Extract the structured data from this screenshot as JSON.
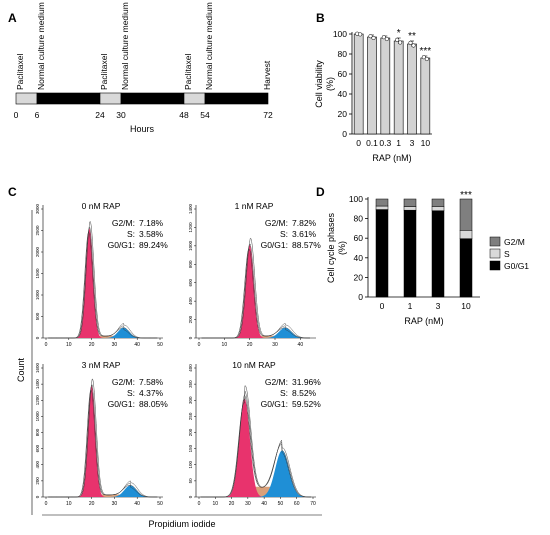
{
  "panels": {
    "A": {
      "letter": "A",
      "segments": [
        {
          "label": "Paclitaxel",
          "type": "drug",
          "from": 0,
          "to": 6
        },
        {
          "label": "Normal culture medium",
          "type": "medium",
          "from": 6,
          "to": 24
        },
        {
          "label": "Paclitaxel",
          "type": "drug",
          "from": 24,
          "to": 30
        },
        {
          "label": "Normal culture medium",
          "type": "medium",
          "from": 30,
          "to": 48
        },
        {
          "label": "Paclitaxel",
          "type": "drug",
          "from": 48,
          "to": 54
        },
        {
          "label": "Normal culture medium",
          "type": "medium",
          "from": 54,
          "to": 72
        }
      ],
      "end_label": "Harvest",
      "ticks": [
        "0",
        "6",
        "24",
        "30",
        "48",
        "54",
        "72"
      ],
      "xlabel": "Hours"
    },
    "B": {
      "letter": "B"
    },
    "C": {
      "letter": "C",
      "ylabel": "Count",
      "xlabel": "Propidium iodide",
      "histograms": [
        {
          "title": "0 nM RAP",
          "stats": [
            {
              "k": "G2/M:",
              "v": "7.18%"
            },
            {
              "k": "S:",
              "v": "3.58%"
            },
            {
              "k": "G0/G1:",
              "v": "89.24%"
            }
          ],
          "yticks": [
            "0",
            "500",
            "1000",
            "1500",
            "2000",
            "2500",
            "3000"
          ],
          "xticks": [
            "0",
            "10",
            "20",
            "30",
            "40",
            "50"
          ]
        },
        {
          "title": "1 nM RAP",
          "stats": [
            {
              "k": "G2/M:",
              "v": "7.82%"
            },
            {
              "k": "S:",
              "v": "3.61%"
            },
            {
              "k": "G0/G1:",
              "v": "88.57%"
            }
          ],
          "yticks": [
            "0",
            "200",
            "400",
            "600",
            "800",
            "1000",
            "1200",
            "1400"
          ],
          "xticks": [
            "0",
            "10",
            "20",
            "30",
            "40"
          ]
        },
        {
          "title": "3 nM RAP",
          "stats": [
            {
              "k": "G2/M:",
              "v": "7.58%"
            },
            {
              "k": "S:",
              "v": "4.37%"
            },
            {
              "k": "G0/G1:",
              "v": "88.05%"
            }
          ],
          "yticks": [
            "0",
            "200",
            "400",
            "600",
            "800",
            "1000",
            "1200",
            "1400",
            "1600"
          ],
          "xticks": [
            "0",
            "10",
            "20",
            "30",
            "40",
            "50"
          ]
        },
        {
          "title": "10 nM RAP",
          "stats": [
            {
              "k": "G2/M:",
              "v": "31.96%"
            },
            {
              "k": "S:",
              "v": "8.52%"
            },
            {
              "k": "G0/G1:",
              "v": "59.52%"
            }
          ],
          "yticks": [
            "0",
            "50",
            "100",
            "150",
            "200",
            "250",
            "300",
            "350",
            "400"
          ],
          "xticks": [
            "0",
            "10",
            "20",
            "30",
            "40",
            "50",
            "60",
            "70"
          ]
        }
      ]
    },
    "D": {
      "letter": "D"
    }
  },
  "colors": {
    "drug": "#d9d9d9",
    "medium": "#000000",
    "bar_gray": "#d3d3d3",
    "g01": "#e8336d",
    "s_phase": "#d9a07a",
    "g2m": "#1f8fd6",
    "stack_g2m": "#7f7f7f",
    "stack_s": "#d9d9d9",
    "stack_g0g1": "#000000"
  },
  "chart_data": [
    {
      "type": "bar",
      "categories": [
        "0",
        "0.1",
        "0.3",
        "1",
        "3",
        "10"
      ],
      "values": [
        100,
        97,
        96,
        93,
        90,
        76
      ],
      "errors": [
        0.8,
        2,
        2,
        3,
        3,
        2
      ],
      "significance": [
        "",
        "",
        "",
        "*",
        "**",
        "***"
      ],
      "xlabel": "RAP (nM)",
      "ylabel": "Cell viability (%)",
      "ylim": [
        0,
        100
      ],
      "yticks": [
        0,
        20,
        40,
        60,
        80,
        100
      ],
      "grid": false
    },
    {
      "type": "bar",
      "stacked": true,
      "categories": [
        "0",
        "1",
        "3",
        "10"
      ],
      "series": [
        {
          "name": "G0/G1",
          "values": [
            89.24,
            88.57,
            88.05,
            59.52
          ]
        },
        {
          "name": "S",
          "values": [
            3.58,
            3.61,
            4.37,
            8.52
          ]
        },
        {
          "name": "G2/M",
          "values": [
            7.18,
            7.82,
            7.58,
            31.96
          ]
        }
      ],
      "significance": [
        "",
        "",
        "",
        "***"
      ],
      "xlabel": "RAP (nM)",
      "ylabel": "Cell cycle phases (%)",
      "ylim": [
        0,
        100
      ],
      "yticks": [
        0,
        20,
        40,
        60,
        80,
        100
      ],
      "legend": "right",
      "legend_order": [
        "G2/M",
        "S",
        "G0/G1"
      ],
      "grid": false
    }
  ]
}
